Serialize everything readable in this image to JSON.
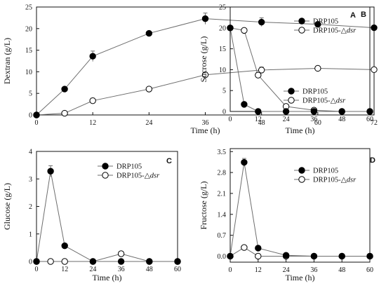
{
  "chart_data": [
    {
      "type": "line",
      "panel": "A",
      "xlabel": "Time (h)",
      "ylabel": "Dextran (g/L)",
      "xlim": [
        0,
        72
      ],
      "ylim": [
        0,
        25
      ],
      "xticks": [
        0,
        12,
        24,
        36,
        48,
        60,
        72
      ],
      "yticks": [
        0,
        5,
        10,
        15,
        20,
        25
      ],
      "legend_position": "bottom-right",
      "series": [
        {
          "name": "DRP105",
          "marker": "filled-circle",
          "x": [
            0,
            6,
            12,
            24,
            36,
            48,
            60,
            72
          ],
          "y": [
            0,
            6.0,
            13.6,
            18.9,
            22.3,
            21.5,
            21.0,
            20.2
          ],
          "err": [
            0,
            0.2,
            1.2,
            0.3,
            1.3,
            1.0,
            0.3,
            0.3
          ]
        },
        {
          "name": "DRP105-",
          "name_italic": "dsr",
          "marker": "open-circle",
          "x": [
            0,
            6,
            12,
            24,
            36,
            48,
            60,
            72
          ],
          "y": [
            0,
            0.4,
            3.3,
            6.0,
            9.3,
            10.4,
            10.8,
            10.5
          ],
          "err": [
            0,
            0.1,
            0.6,
            0.2,
            0.6,
            0.7,
            0.3,
            0.2
          ]
        }
      ]
    },
    {
      "type": "line",
      "panel": "B",
      "xlabel": "Time (h)",
      "ylabel": "Sucrose (g/L)",
      "xlim": [
        0,
        60
      ],
      "ylim": [
        0,
        25
      ],
      "xticks": [
        0,
        12,
        24,
        36,
        48,
        60
      ],
      "yticks": [
        0,
        5,
        10,
        15,
        20,
        25
      ],
      "legend_position": "top-right",
      "series": [
        {
          "name": "DRP105",
          "marker": "filled-circle",
          "x": [
            0,
            6,
            12,
            24,
            36,
            48,
            60
          ],
          "y": [
            20.0,
            1.7,
            0,
            0,
            0,
            0,
            0
          ],
          "err": [
            0,
            0.2,
            0,
            0,
            0,
            0,
            0
          ]
        },
        {
          "name": "DRP105-",
          "name_italic": "dsr",
          "marker": "open-circle",
          "x": [
            0,
            6,
            12,
            24,
            36,
            48,
            60
          ],
          "y": [
            20.0,
            19.4,
            8.7,
            1.2,
            0.3,
            0,
            0
          ],
          "err": [
            0,
            0.2,
            0.7,
            0.1,
            0.1,
            0,
            0
          ]
        }
      ]
    },
    {
      "type": "line",
      "panel": "C",
      "xlabel": "Time (h)",
      "ylabel": "Glucose (g/L)",
      "xlim": [
        0,
        60
      ],
      "ylim": [
        0,
        4
      ],
      "xticks": [
        0,
        12,
        24,
        36,
        48,
        60
      ],
      "yticks": [
        0,
        1,
        2,
        3,
        4
      ],
      "legend_position": "top-right",
      "series": [
        {
          "name": "DRP105",
          "marker": "filled-circle",
          "x": [
            0,
            6,
            12,
            24,
            36,
            48,
            60
          ],
          "y": [
            0,
            3.28,
            0.57,
            0,
            0,
            0,
            0
          ],
          "err": [
            0,
            0.2,
            0,
            0,
            0,
            0,
            0
          ]
        },
        {
          "name": "DRP105-",
          "name_italic": "dsr",
          "marker": "open-circle",
          "x": [
            0,
            6,
            12,
            24,
            36,
            48,
            60
          ],
          "y": [
            0,
            0,
            0,
            0,
            0.28,
            0,
            0
          ],
          "err": [
            0,
            0,
            0,
            0,
            0.08,
            0,
            0
          ]
        }
      ]
    },
    {
      "type": "line",
      "panel": "D",
      "xlabel": "Time (h)",
      "ylabel": "Fructose (g/L)",
      "xlim": [
        0,
        60
      ],
      "ylim": [
        -0.2,
        3.6
      ],
      "xticks": [
        0,
        12,
        24,
        36,
        48,
        60
      ],
      "yticks": [
        0,
        0.7,
        1.4,
        2.1,
        2.8,
        3.5
      ],
      "ytick_labels": [
        "0.0",
        "0.7",
        "1.4",
        "2.1",
        "2.8",
        "3.5"
      ],
      "legend_position": "top-right",
      "series": [
        {
          "name": "DRP105",
          "marker": "filled-circle",
          "x": [
            0,
            6,
            12,
            24,
            36,
            48,
            60
          ],
          "y": [
            0,
            3.14,
            0.27,
            0.03,
            0,
            0,
            0
          ],
          "err": [
            0,
            0.13,
            0.07,
            0,
            0,
            0,
            0
          ]
        },
        {
          "name": "DRP105-",
          "name_italic": "dsr",
          "marker": "open-circle",
          "x": [
            0,
            6,
            12,
            24,
            36,
            48,
            60
          ],
          "y": [
            0,
            0.29,
            0,
            0,
            0,
            0,
            0
          ],
          "err": [
            0,
            0,
            0,
            0,
            0,
            0,
            0
          ]
        }
      ]
    }
  ],
  "legend_symbol": "△",
  "colors": {
    "line": "#6e6e6e",
    "marker_fill": "#000000",
    "open_fill": "#ffffff",
    "axis": "#111111"
  }
}
